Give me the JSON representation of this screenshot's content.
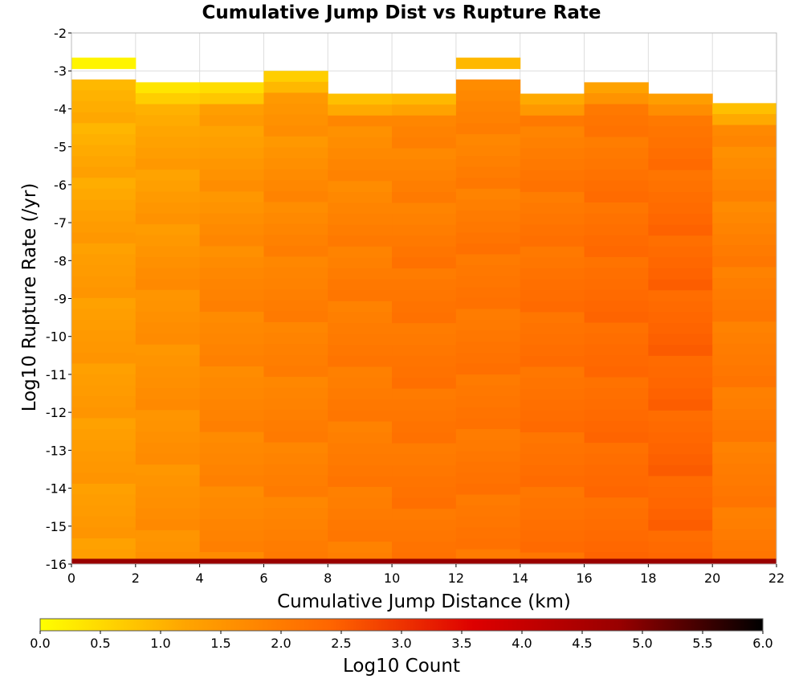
{
  "chart_data": {
    "type": "heatmap",
    "title": "Cumulative Jump Dist vs Rupture Rate",
    "xlabel": "Cumulative Jump Distance (km)",
    "ylabel": "Log10 Rupture Rate (/yr)",
    "xlim": [
      0,
      22
    ],
    "ylim": [
      -16,
      -2
    ],
    "x_ticks": [
      "0",
      "2",
      "4",
      "6",
      "8",
      "10",
      "12",
      "14",
      "16",
      "18",
      "20",
      "22"
    ],
    "y_ticks": [
      "-2",
      "-3",
      "-4",
      "-5",
      "-6",
      "-7",
      "-8",
      "-9",
      "-10",
      "-11",
      "-12",
      "-13",
      "-14",
      "-15",
      "-16"
    ],
    "x_bin_edges": [
      0,
      2,
      4,
      6,
      8,
      10,
      12,
      14,
      16,
      18,
      20,
      22
    ],
    "y_bin_width": 0.288,
    "columns": [
      {
        "x_range": [
          0,
          2
        ],
        "y_top": -2.65,
        "gaps": [
          [
            -3.3,
            -2.98
          ]
        ],
        "low": 0.9,
        "high": 1.4
      },
      {
        "x_range": [
          2,
          4
        ],
        "y_top": -3.3,
        "gaps": [],
        "low": 1.1,
        "high": 1.6
      },
      {
        "x_range": [
          4,
          6
        ],
        "y_top": -3.3,
        "gaps": [],
        "low": 1.2,
        "high": 1.8
      },
      {
        "x_range": [
          6,
          8
        ],
        "y_top": -3.0,
        "gaps": [],
        "low": 1.4,
        "high": 1.9
      },
      {
        "x_range": [
          8,
          10
        ],
        "y_top": -3.6,
        "gaps": [],
        "low": 1.6,
        "high": 2.0
      },
      {
        "x_range": [
          10,
          12
        ],
        "y_top": -3.6,
        "gaps": [],
        "low": 1.7,
        "high": 2.1
      },
      {
        "x_range": [
          12,
          14
        ],
        "y_top": -2.65,
        "gaps": [
          [
            -3.3,
            -2.98
          ]
        ],
        "low": 1.7,
        "high": 2.1
      },
      {
        "x_range": [
          14,
          16
        ],
        "y_top": -3.6,
        "gaps": [],
        "low": 1.9,
        "high": 2.2
      },
      {
        "x_range": [
          16,
          18
        ],
        "y_top": -3.3,
        "gaps": [],
        "low": 2.0,
        "high": 2.3
      },
      {
        "x_range": [
          18,
          20
        ],
        "y_top": -3.6,
        "gaps": [],
        "low": 2.1,
        "high": 2.4
      },
      {
        "x_range": [
          20,
          22
        ],
        "y_top": -3.85,
        "gaps": [],
        "low": 1.6,
        "high": 2.0
      }
    ],
    "bottom_row": {
      "y_range": [
        -16,
        -15.86
      ],
      "value": 4.8
    },
    "colorbar": {
      "label": "Log10 Count",
      "range": [
        0,
        6
      ],
      "ticks": [
        "0.0",
        "0.5",
        "1.0",
        "1.5",
        "2.0",
        "2.5",
        "3.0",
        "3.5",
        "4.0",
        "4.5",
        "5.0",
        "5.5",
        "6.0"
      ],
      "stops": [
        "#ffff00",
        "#ffa500",
        "#ff6600",
        "#dd0000",
        "#990000",
        "#000000"
      ]
    },
    "grid": true
  }
}
